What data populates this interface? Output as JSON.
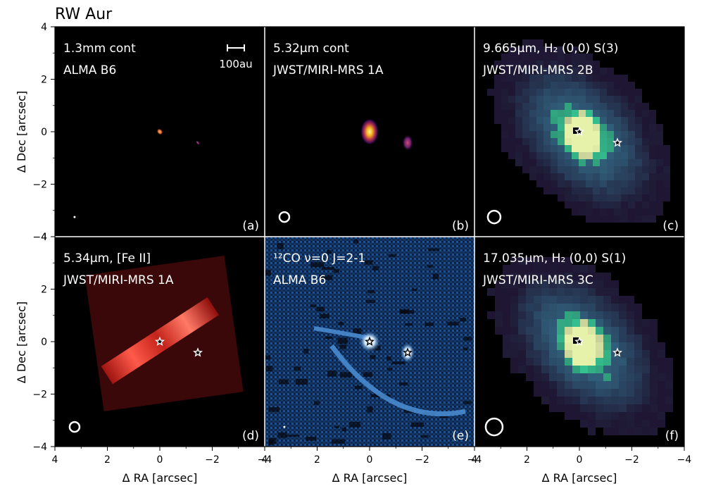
{
  "figure_title": "RW Aur",
  "colors": {
    "panel_bg": "#000000",
    "divider": "#ffffff",
    "annotation_text": "#ffffff"
  },
  "chart_data": {
    "type": "heatmap",
    "title": "RW Aur",
    "xlabel": "Δ RA [arcsec]",
    "ylabel": "Δ Dec [arcsec]",
    "xlim": [
      4,
      -4
    ],
    "ylim": [
      -4,
      4
    ],
    "xticks": [
      4,
      2,
      0,
      -2,
      -4
    ],
    "yticks": [
      4,
      2,
      0,
      -2,
      -4
    ],
    "xtick_labels": [
      "4",
      "2",
      "0",
      "−2",
      "−4"
    ],
    "ytick_labels": [
      "4",
      "2",
      "0",
      "−2",
      "−4"
    ],
    "grid": false,
    "scalebar_label": "100au",
    "panels": [
      {
        "id": "a",
        "label": "(a)",
        "line1": "1.3mm cont",
        "line2": "ALMA B6",
        "colormap": "inferno-like (black to orange)",
        "stars": [],
        "blobs": [
          {
            "x": 0.0,
            "y": 0.0
          },
          {
            "x": -1.45,
            "y": -0.42
          }
        ],
        "beam": {
          "x": 3.25,
          "y": -3.25,
          "size": "tiny, filled"
        }
      },
      {
        "id": "b",
        "label": "(b)",
        "line1": "5.32μm cont",
        "line2": "JWST/MIRI-MRS 1A",
        "colormap": "inferno-like (black to yellow)",
        "stars": [],
        "blobs": [
          {
            "x": 0.0,
            "y": 0.0
          },
          {
            "x": -1.45,
            "y": -0.42
          }
        ],
        "beam": {
          "x": 3.25,
          "y": -3.25,
          "size": "small, open"
        }
      },
      {
        "id": "c",
        "label": "(c)",
        "line1": "9.665μm, H₂ (0,0) S(3)",
        "line2": "JWST/MIRI-MRS 2B",
        "colormap": "mako-like (black to teal/white)",
        "stars": [
          {
            "x": 0.0,
            "y": 0.0
          },
          {
            "x": -1.45,
            "y": -0.42
          }
        ],
        "beam": {
          "x": 3.25,
          "y": -3.25,
          "size": "medium, open"
        }
      },
      {
        "id": "d",
        "label": "(d)",
        "line1": "5.34μm, [Fe II]",
        "line2": "JWST/MIRI-MRS 1A",
        "colormap": "red (black to red/white)",
        "stars": [
          {
            "x": 0.0,
            "y": 0.0
          },
          {
            "x": -1.45,
            "y": -0.42
          }
        ],
        "beam": {
          "x": 3.25,
          "y": -3.25,
          "size": "small, open"
        }
      },
      {
        "id": "e",
        "label": "(e)",
        "line1": "¹²CO ν=0 J=2-1",
        "line2": "ALMA B6",
        "colormap": "blue (black to light blue/white)",
        "stars": [
          {
            "x": 0.0,
            "y": 0.0
          },
          {
            "x": -1.45,
            "y": -0.42
          }
        ],
        "beam": {
          "x": 3.25,
          "y": -3.25,
          "size": "tiny, filled"
        }
      },
      {
        "id": "f",
        "label": "(f)",
        "line1": "17.035μm, H₂ (0,0) S(1)",
        "line2": "JWST/MIRI-MRS 3C",
        "colormap": "mako-like (black to teal/white)",
        "stars": [
          {
            "x": 0.0,
            "y": 0.0
          },
          {
            "x": -1.45,
            "y": -0.42
          }
        ],
        "beam": {
          "x": 3.25,
          "y": -3.25,
          "size": "large, open"
        }
      }
    ]
  }
}
